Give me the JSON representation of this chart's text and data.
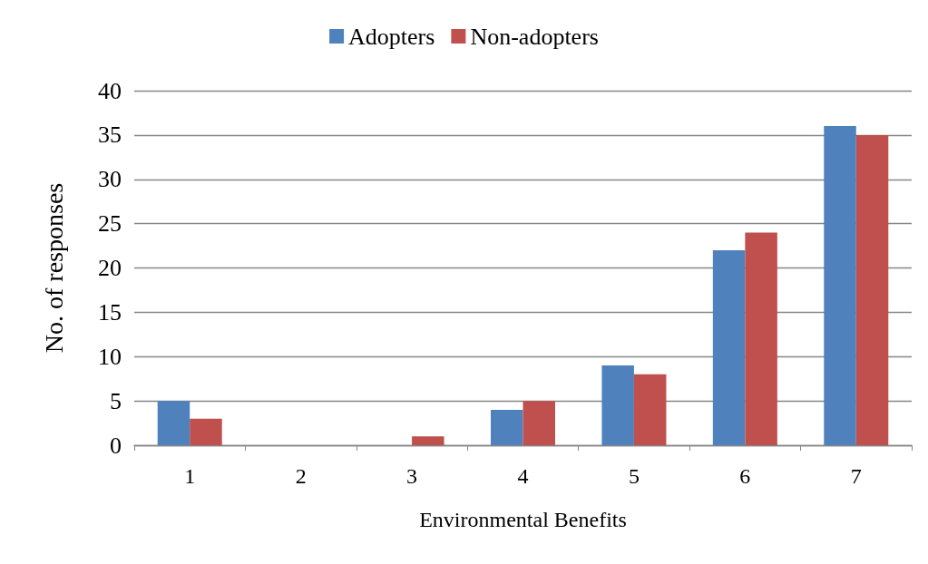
{
  "chart_data": {
    "type": "bar",
    "xlabel": "Environmental Benefits",
    "ylabel": "No. of responses",
    "categories": [
      "1",
      "2",
      "3",
      "4",
      "5",
      "6",
      "7"
    ],
    "series": [
      {
        "name": "Adopters",
        "color": "#4f81bd",
        "values": [
          5,
          0,
          0,
          4,
          9,
          22,
          36
        ]
      },
      {
        "name": "Non-adopters",
        "color": "#c0504d",
        "values": [
          3,
          0,
          1,
          5,
          8,
          24,
          35
        ]
      }
    ],
    "ylim": [
      0,
      40
    ],
    "yticks": [
      0,
      5,
      10,
      15,
      20,
      25,
      30,
      35,
      40
    ],
    "grid": "y",
    "legend": "top"
  }
}
